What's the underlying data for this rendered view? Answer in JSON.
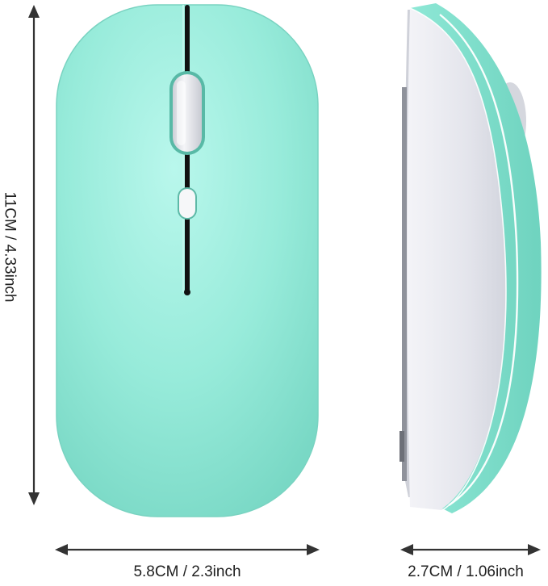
{
  "dimensions": {
    "height": "11CM / 4.33inch",
    "width": "5.8CM / 2.3inch",
    "depth": "2.7CM / 1.06inch"
  },
  "colors": {
    "mouse_shell": "#8ee8d6",
    "mouse_shell_highlight": "#b6f6ea",
    "side_panel": "#eeeef3",
    "scroll_wheel": "#e7e8ec",
    "groove": "#111111",
    "arrow": "#333333"
  },
  "icons": {
    "top_view": "mouse-top-view",
    "side_view": "mouse-side-view",
    "arrows": "double-headed-arrow"
  }
}
